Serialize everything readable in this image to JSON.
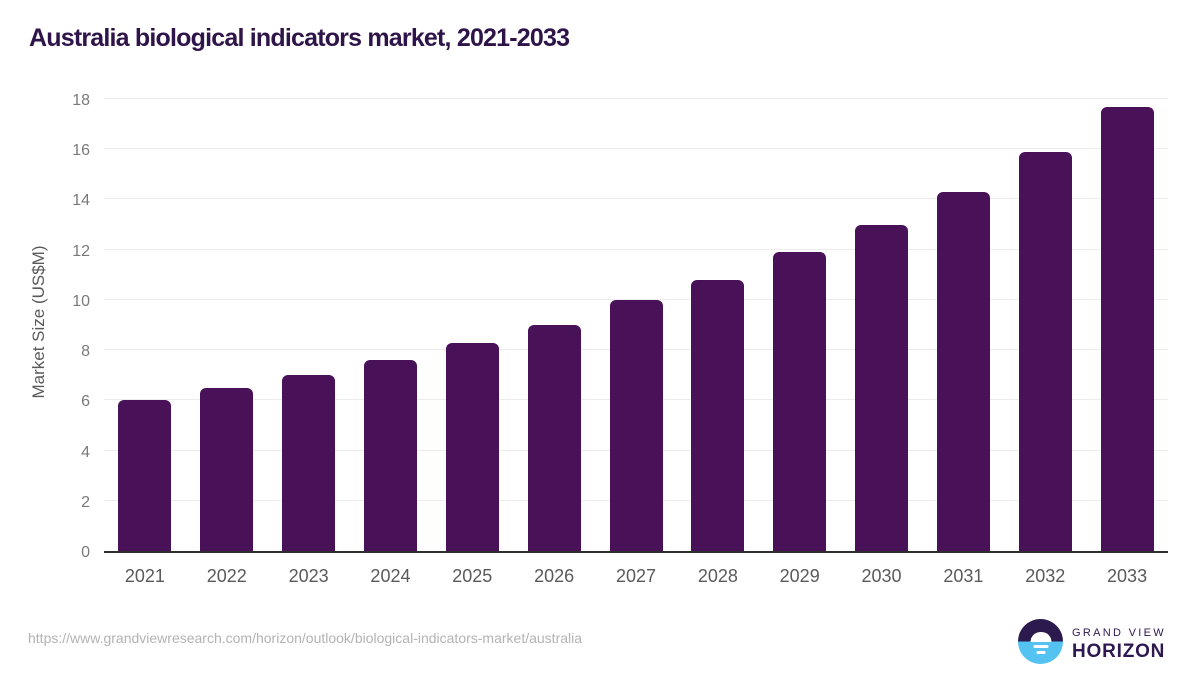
{
  "chart_data": {
    "type": "bar",
    "title": "Australia biological indicators market, 2021-2033",
    "categories": [
      "2021",
      "2022",
      "2023",
      "2024",
      "2025",
      "2026",
      "2027",
      "2028",
      "2029",
      "2030",
      "2031",
      "2032",
      "2033"
    ],
    "values": [
      6.0,
      6.5,
      7.0,
      7.6,
      8.3,
      9.0,
      10.0,
      10.8,
      11.9,
      13.0,
      14.3,
      15.9,
      17.7
    ],
    "xlabel": "",
    "ylabel": "Market Size (US$M)",
    "ylim": [
      0,
      18
    ],
    "yticks": [
      0,
      2,
      4,
      6,
      8,
      10,
      12,
      14,
      16,
      18
    ],
    "grid": "horizontal",
    "legend": "none",
    "bar_color": "#481158"
  },
  "footer": {
    "source_url": "https://www.grandviewresearch.com/horizon/outlook/biological-indicators-market/australia",
    "logo": {
      "top_text": "GRAND VIEW",
      "bottom_text": "HORIZON"
    }
  },
  "colors": {
    "bar": "#481158",
    "title_text": "#2e1449",
    "axis_text": "#5a5a5a",
    "ytick_text": "#7a7a7a",
    "gridline": "#ececec",
    "axis_line": "#2e2e2e",
    "footer_text": "#b3b3b3",
    "logo_dark": "#2b1a4e",
    "logo_blue": "#55c3f2",
    "logo_text": "#2e1850"
  }
}
